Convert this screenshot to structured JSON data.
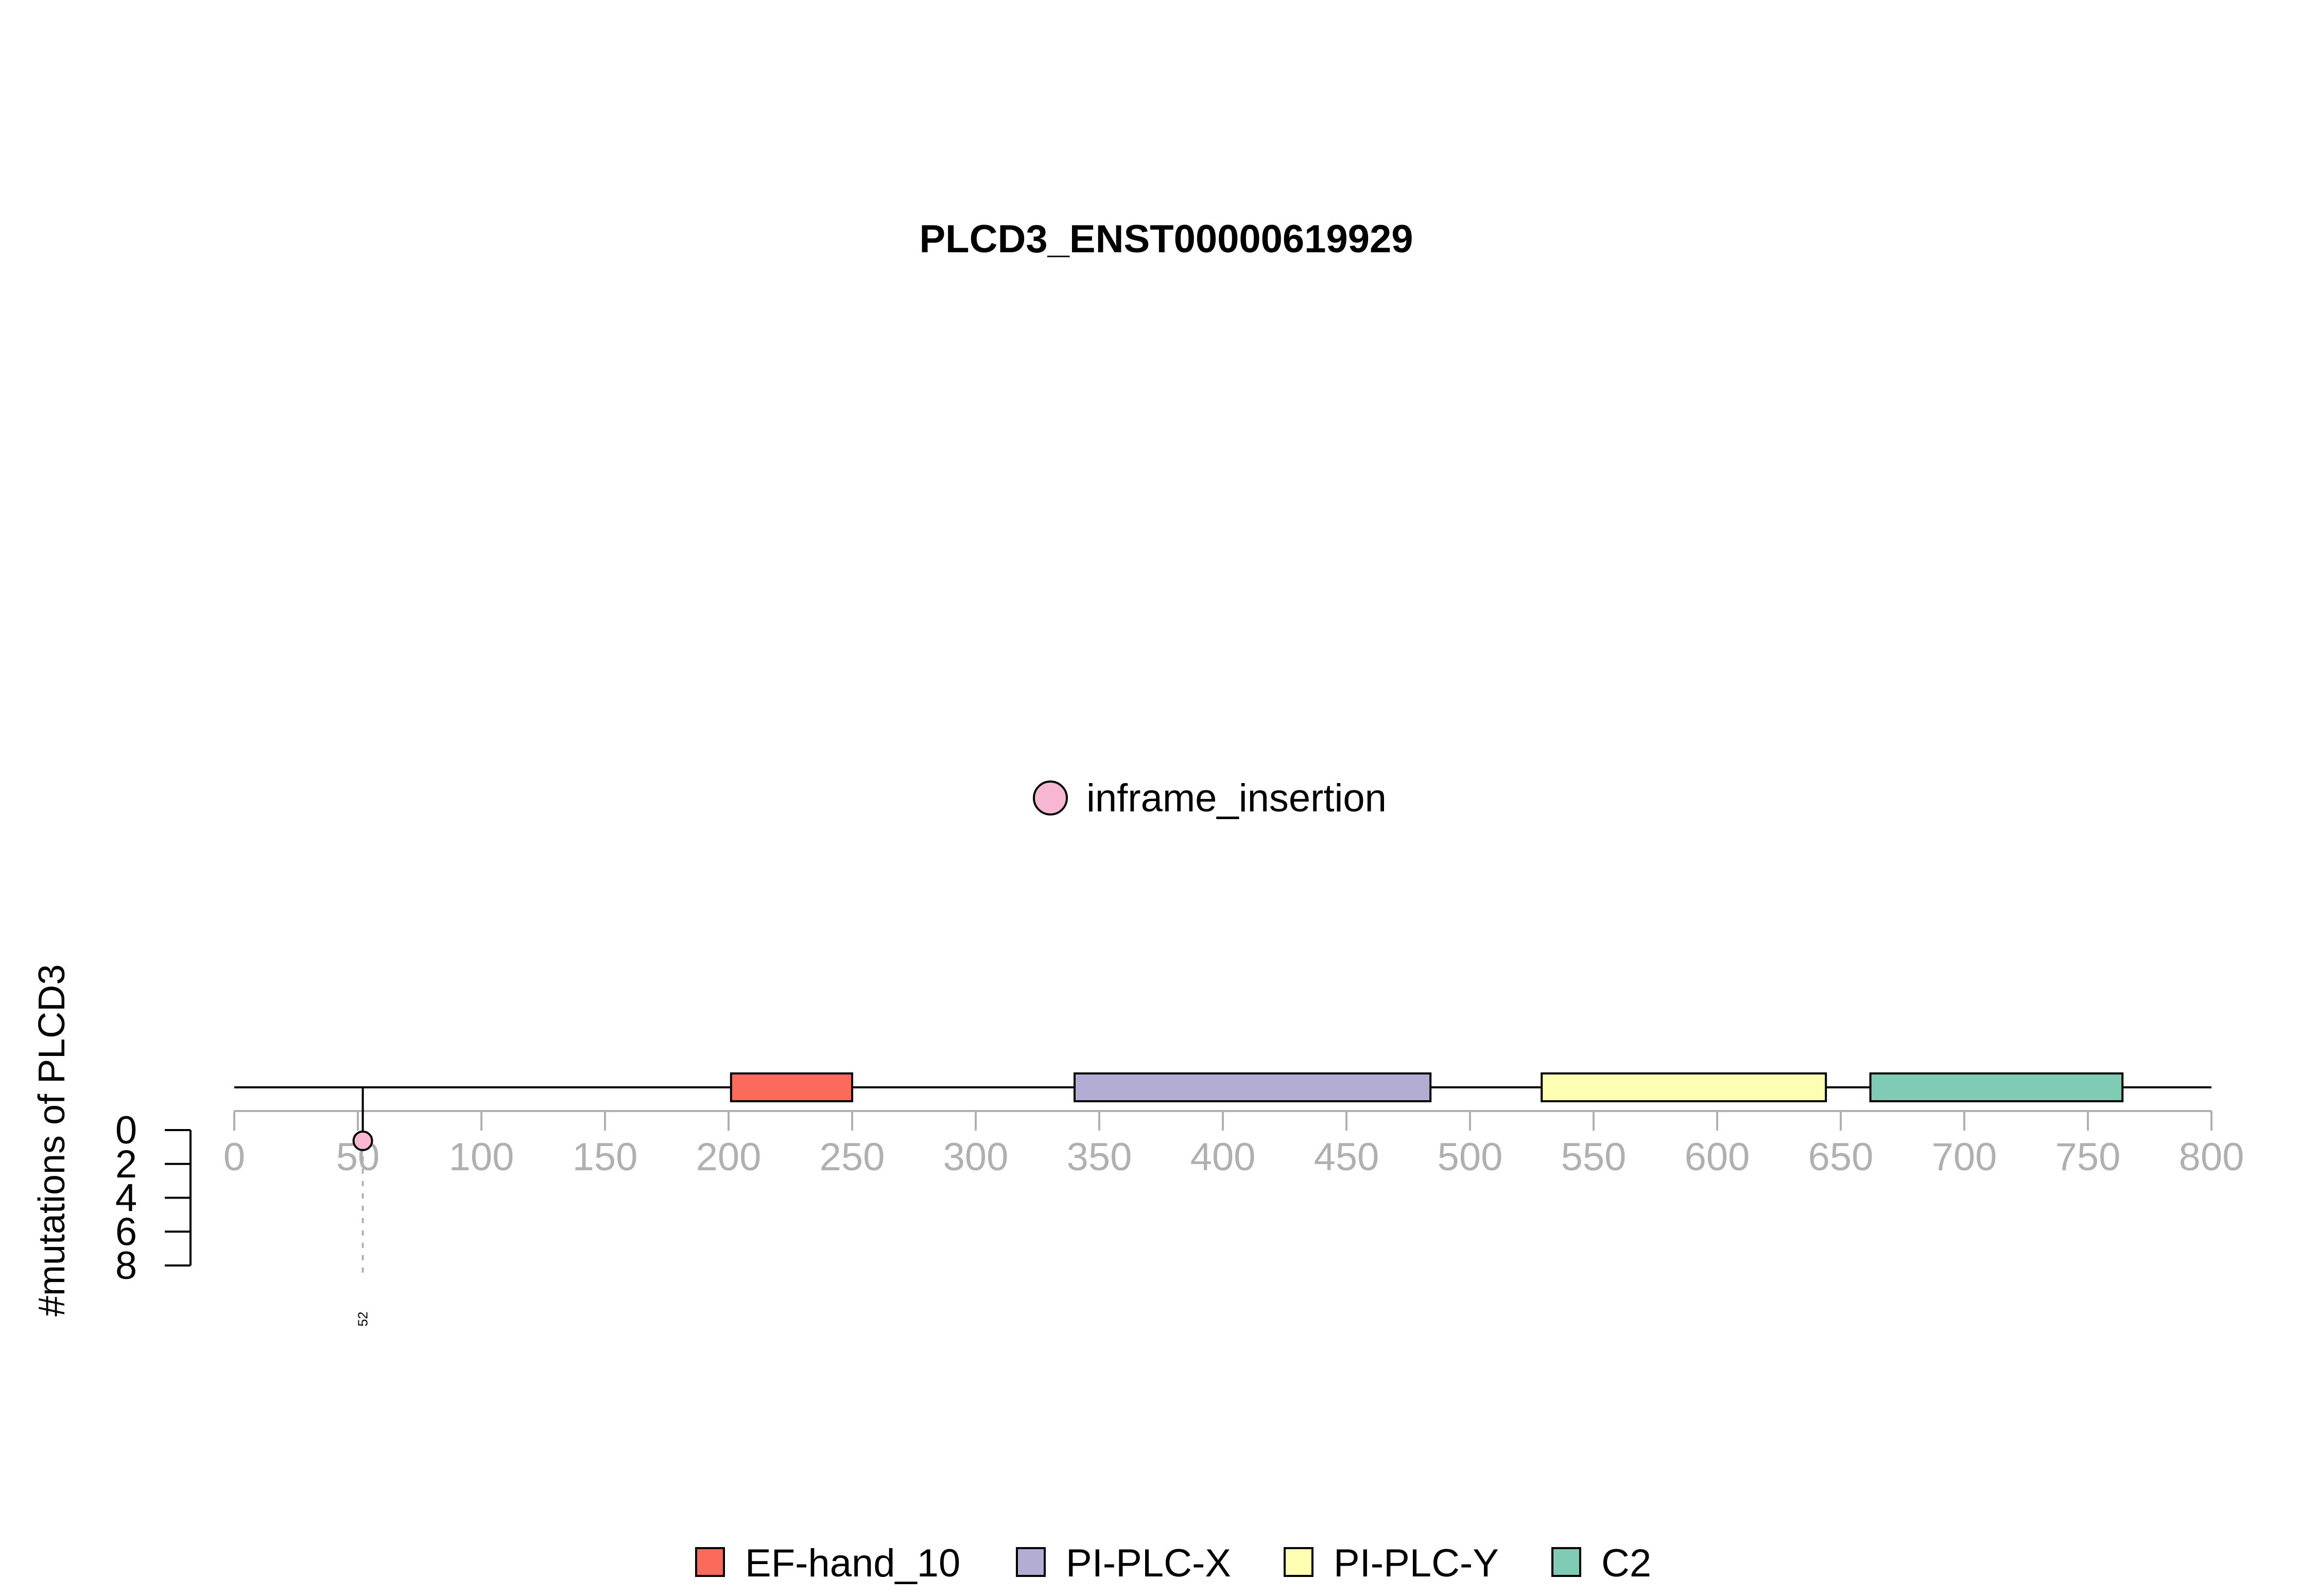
{
  "chart_data": {
    "type": "lollipop",
    "title": "PLCD3_ENST00000619929",
    "ylabel": "#mutations of PLCD3",
    "x_range": [
      0,
      800
    ],
    "x_ticks": [
      "0",
      "50",
      "100",
      "150",
      "200",
      "250",
      "300",
      "350",
      "400",
      "450",
      "500",
      "550",
      "600",
      "650",
      "700",
      "750",
      "800"
    ],
    "y_ticks": [
      "0",
      "2",
      "4",
      "6",
      "8"
    ],
    "y_range": [
      0,
      8
    ],
    "mutation_legend": [
      {
        "label": "inframe_insertion",
        "color": "#f7b6d2"
      }
    ],
    "domain_legend": [
      {
        "label": "EF-hand_10",
        "color": "#fb6a5a"
      },
      {
        "label": "PI-PLC-X",
        "color": "#b3acd3"
      },
      {
        "label": "PI-PLC-Y",
        "color": "#fefeb2"
      },
      {
        "label": "C2",
        "color": "#7fcbb6"
      }
    ],
    "domains": [
      {
        "name": "EF-hand_10",
        "start": 201,
        "end": 250,
        "color": "#fb6a5a"
      },
      {
        "name": "PI-PLC-X",
        "start": 340,
        "end": 484,
        "color": "#b3acd3"
      },
      {
        "name": "PI-PLC-Y",
        "start": 529,
        "end": 644,
        "color": "#fefeb2"
      },
      {
        "name": "C2",
        "start": 662,
        "end": 764,
        "color": "#7fcbb6"
      }
    ],
    "mutations": [
      {
        "position": 52,
        "count": 1,
        "type": "inframe_insertion",
        "label": "52",
        "color": "#f7b6d2"
      }
    ]
  }
}
